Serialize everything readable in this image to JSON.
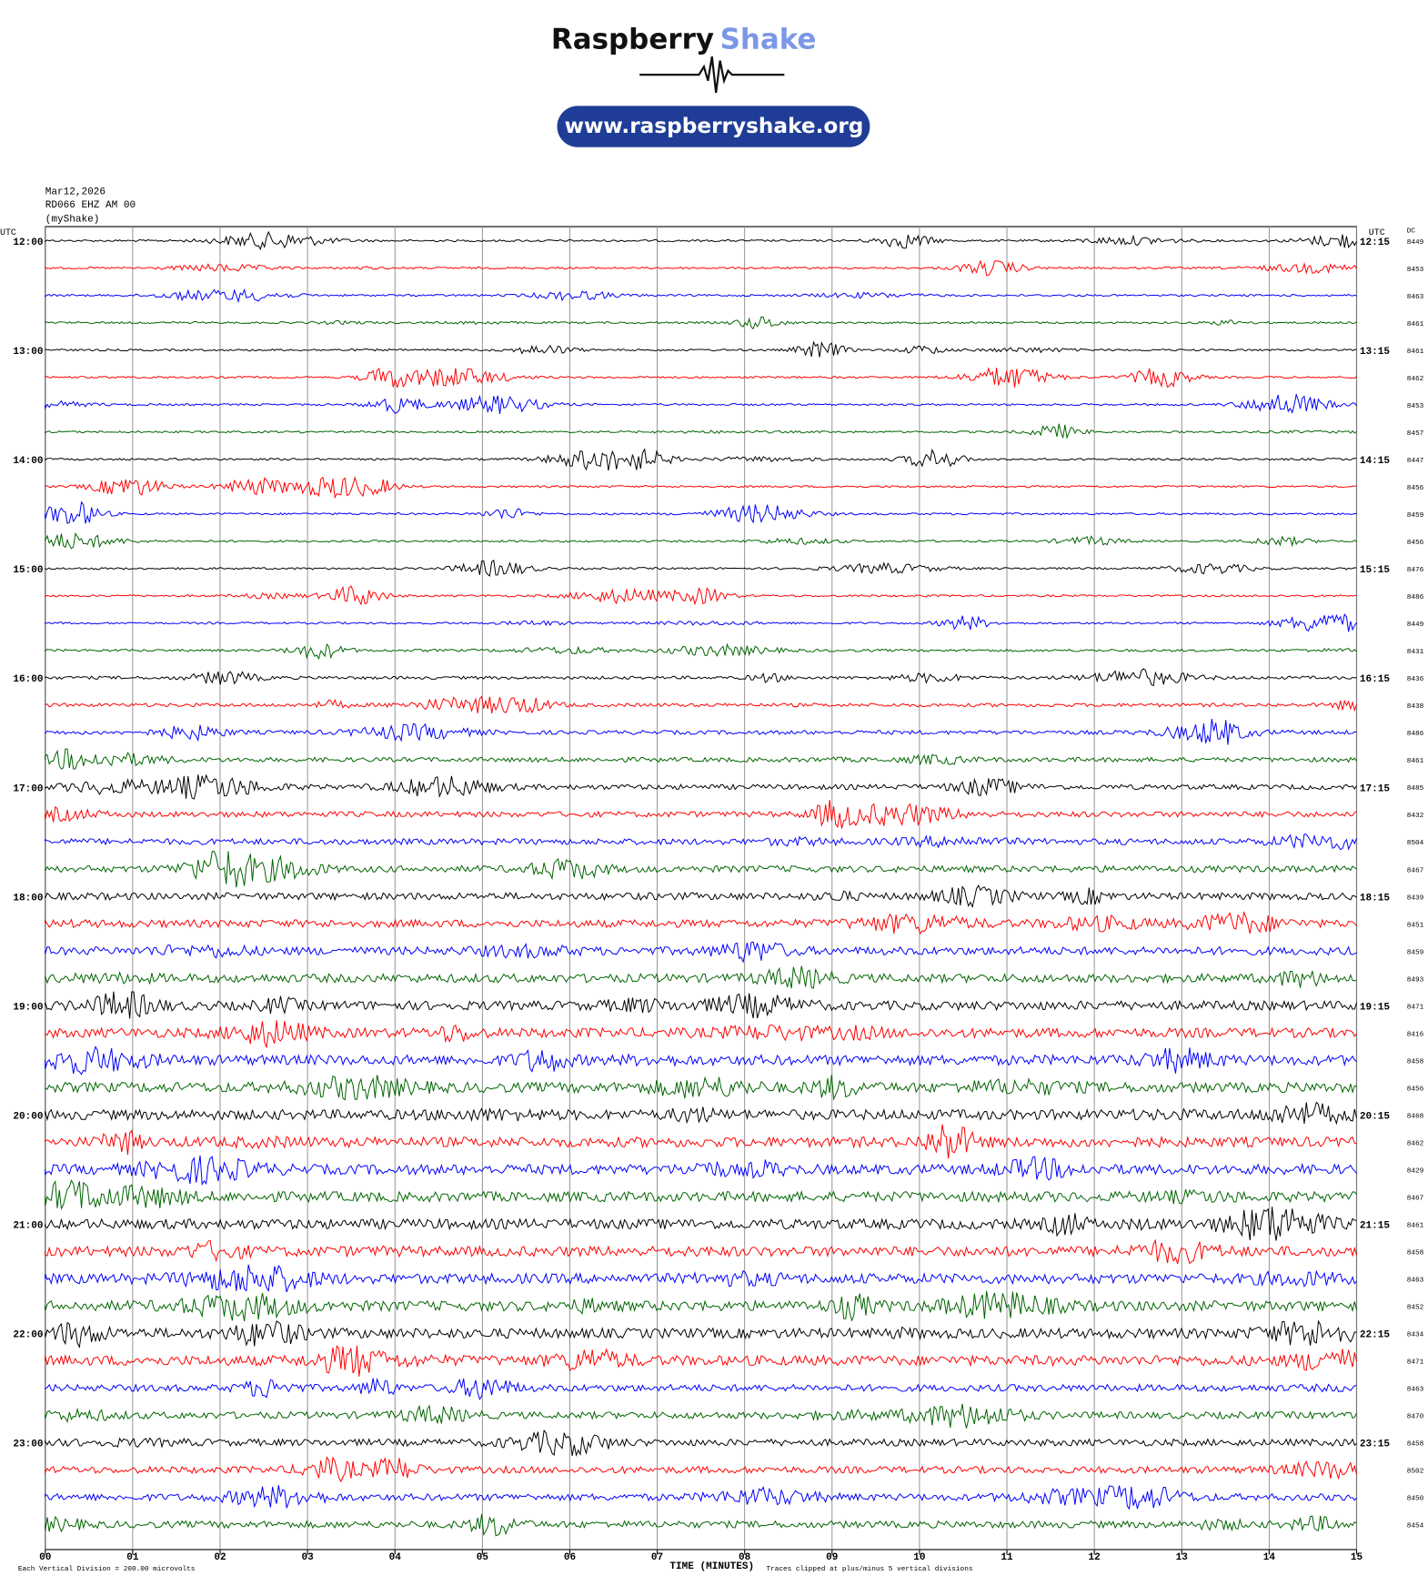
{
  "header": {
    "brand_main": "Raspberry",
    "brand_accent": "Shake",
    "url": "www.raspberryshake.org"
  },
  "station": {
    "date": "Mar12,2026",
    "channel": "RD066 EHZ AM 00",
    "source": "(myShake)"
  },
  "left_axis_title": "UTC",
  "right_axis_title": "UTC",
  "dc_title": "DC",
  "left_labels": [
    "12:00",
    "13:00",
    "14:00",
    "15:00",
    "16:00",
    "17:00",
    "18:00",
    "19:00",
    "20:00",
    "21:00",
    "22:00",
    "23:00"
  ],
  "right_labels": [
    "12:15",
    "13:15",
    "14:15",
    "15:15",
    "16:15",
    "17:15",
    "18:15",
    "19:15",
    "20:15",
    "21:15",
    "22:15",
    "23:15"
  ],
  "dc_values": [
    8449,
    8453,
    8463,
    8461,
    8461,
    8462,
    8453,
    8457,
    8447,
    8456,
    8459,
    8456,
    8476,
    8486,
    8449,
    8431,
    8436,
    8438,
    8486,
    8461,
    8485,
    8432,
    8504,
    8467,
    8439,
    8451,
    8459,
    8493,
    8471,
    8416,
    8458,
    8456,
    8468,
    8462,
    8429,
    8467,
    8461,
    8458,
    8463,
    8452,
    8434,
    8471,
    8463,
    8470,
    8458,
    8502,
    8450,
    8454
  ],
  "x_ticks": [
    "00",
    "01",
    "02",
    "03",
    "04",
    "05",
    "06",
    "07",
    "08",
    "09",
    "10",
    "11",
    "12",
    "13",
    "14",
    "15"
  ],
  "x_label": "TIME (MINUTES)",
  "footnote_scale": "Each Vertical Division =  200.00 microvolts",
  "footnote_clip": "Traces clipped at plus/minus 5 vertical divisions",
  "trace_colors": [
    "#000000",
    "#ff0000",
    "#0000ff",
    "#006400"
  ]
}
